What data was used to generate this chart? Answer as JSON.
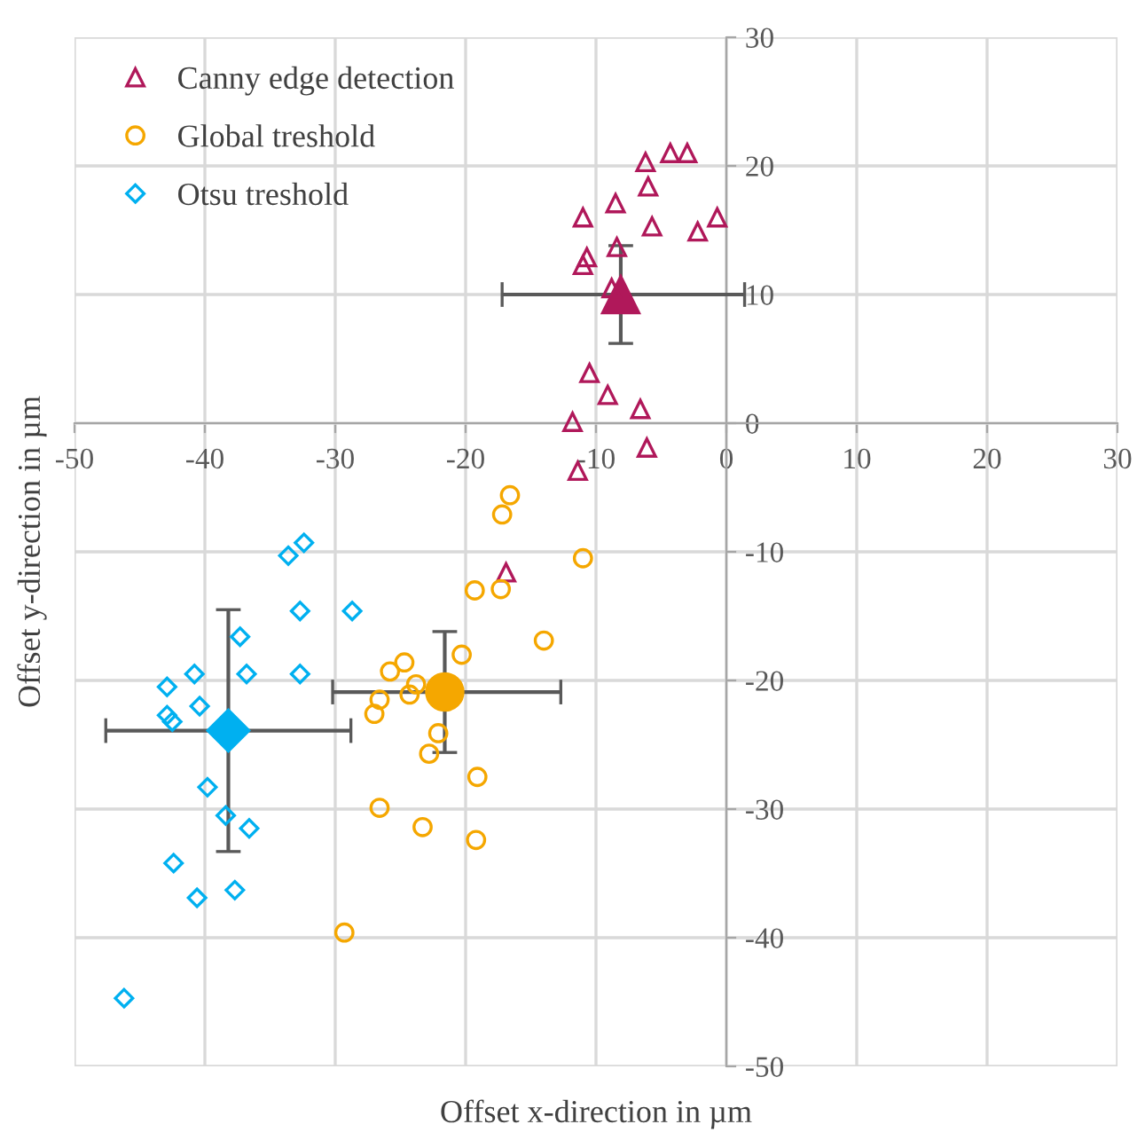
{
  "chart_data": {
    "type": "scatter",
    "xlabel": "Offset x-direction in µm",
    "ylabel": "Offset y-direction in µm",
    "xlim": [
      -50,
      30
    ],
    "ylim": [
      -50,
      30
    ],
    "xticks": [
      -50,
      -40,
      -30,
      -20,
      -10,
      0,
      10,
      20,
      30
    ],
    "yticks": [
      -50,
      -40,
      -30,
      -20,
      -10,
      0,
      10,
      20,
      30
    ],
    "grid": true,
    "legend": "top left",
    "series": [
      {
        "name": "Canny edge detection",
        "color": "#b0185a",
        "marker": "triangle",
        "x": [
          -6.2,
          -4.3,
          -3.0,
          -6.0,
          -8.5,
          -11.0,
          -5.7,
          -0.7,
          -2.2,
          -8.4,
          -10.7,
          -11.0,
          -8.8,
          -10.5,
          -9.1,
          -6.6,
          -11.8,
          -6.1,
          -11.4,
          -16.9
        ],
        "values": [
          20.3,
          21.0,
          21.0,
          18.4,
          17.1,
          16.0,
          15.3,
          16.0,
          14.9,
          13.7,
          12.9,
          12.3,
          10.5,
          3.9,
          2.2,
          1.1,
          0.1,
          -1.9,
          -3.7,
          -11.6
        ]
      },
      {
        "name": "Global treshold",
        "color": "#f5a700",
        "marker": "circle",
        "x": [
          -16.6,
          -17.2,
          -11.0,
          -19.3,
          -17.3,
          -14.0,
          -20.3,
          -24.7,
          -25.8,
          -23.8,
          -24.3,
          -26.6,
          -27.0,
          -22.1,
          -22.8,
          -19.1,
          -26.6,
          -23.3,
          -19.2,
          -29.3
        ],
        "values": [
          -5.6,
          -7.1,
          -10.5,
          -13.0,
          -12.9,
          -16.9,
          -18.0,
          -18.6,
          -19.3,
          -20.3,
          -21.1,
          -21.5,
          -22.6,
          -24.1,
          -25.7,
          -27.5,
          -29.9,
          -31.4,
          -32.4,
          -39.6
        ]
      },
      {
        "name": "Otsu treshold",
        "color": "#00b0f0",
        "marker": "diamond",
        "x": [
          -32.4,
          -33.6,
          -32.7,
          -28.7,
          -37.3,
          -40.8,
          -36.8,
          -32.7,
          -42.9,
          -40.4,
          -42.9,
          -42.5,
          -39.8,
          -38.4,
          -36.6,
          -42.4,
          -37.7,
          -40.6,
          -46.2
        ],
        "values": [
          -9.3,
          -10.3,
          -14.6,
          -14.6,
          -16.6,
          -19.5,
          -19.5,
          -19.5,
          -20.5,
          -22.0,
          -22.7,
          -23.2,
          -28.3,
          -30.5,
          -31.5,
          -34.2,
          -36.3,
          -36.9,
          -44.7
        ]
      },
      {
        "color": "#b0185a",
        "marker": "triangle",
        "x": [
          -8.1
        ],
        "values": [
          10.0
        ],
        "errors": [
          [
            6.2,
            13.8
          ]
        ],
        "xerrors": [
          [
            -17.2,
            1.4
          ]
        ]
      },
      {
        "color": "#f5a700",
        "marker": "circle",
        "x": [
          -21.6
        ],
        "values": [
          -20.9
        ],
        "errors": [
          [
            -25.6,
            -16.2
          ]
        ],
        "xerrors": [
          [
            -30.2,
            -12.7
          ]
        ]
      },
      {
        "color": "#00b0f0",
        "marker": "diamond",
        "x": [
          -38.2
        ],
        "values": [
          -23.9
        ],
        "errors": [
          [
            -33.3,
            -14.5
          ]
        ],
        "xerrors": [
          [
            -47.6,
            -28.8
          ]
        ]
      }
    ]
  }
}
